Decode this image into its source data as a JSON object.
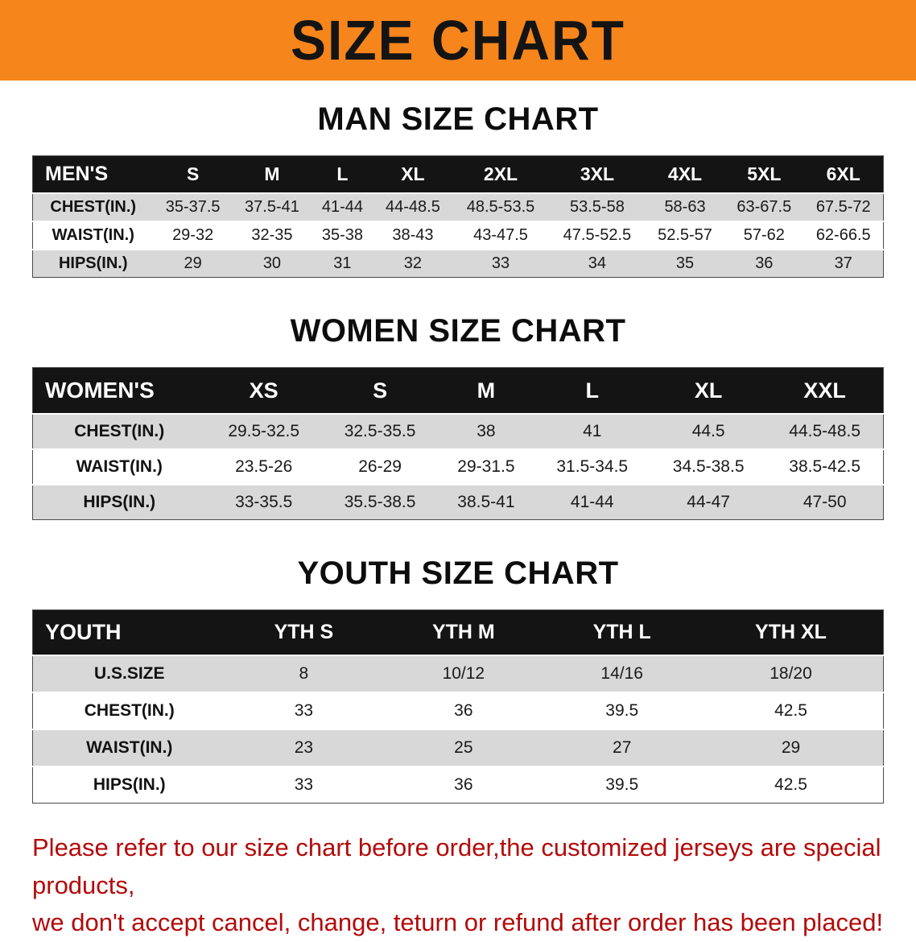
{
  "banner": {
    "title": "SIZE CHART"
  },
  "colors": {
    "accent_orange": "#F6851C",
    "header_black": "#141414",
    "row_gray": "#d8d8d8",
    "warning_red": "#B40A0A"
  },
  "men": {
    "heading": "MAN SIZE CHART",
    "table": {
      "header": [
        "MEN'S",
        "S",
        "M",
        "L",
        "XL",
        "2XL",
        "3XL",
        "4XL",
        "5XL",
        "6XL"
      ],
      "rows": [
        {
          "label": "CHEST(IN.)",
          "values": [
            "35-37.5",
            "37.5-41",
            "41-44",
            "44-48.5",
            "48.5-53.5",
            "53.5-58",
            "58-63",
            "63-67.5",
            "67.5-72"
          ]
        },
        {
          "label": "WAIST(IN.)",
          "values": [
            "29-32",
            "32-35",
            "35-38",
            "38-43",
            "43-47.5",
            "47.5-52.5",
            "52.5-57",
            "57-62",
            "62-66.5"
          ]
        },
        {
          "label": "HIPS(IN.)",
          "values": [
            "29",
            "30",
            "31",
            "32",
            "33",
            "34",
            "35",
            "36",
            "37"
          ]
        }
      ]
    }
  },
  "women": {
    "heading": "WOMEN SIZE CHART",
    "table": {
      "header": [
        "WOMEN'S",
        "XS",
        "S",
        "M",
        "L",
        "XL",
        "XXL"
      ],
      "rows": [
        {
          "label": "CHEST(IN.)",
          "values": [
            "29.5-32.5",
            "32.5-35.5",
            "38",
            "41",
            "44.5",
            "44.5-48.5"
          ]
        },
        {
          "label": "WAIST(IN.)",
          "values": [
            "23.5-26",
            "26-29",
            "29-31.5",
            "31.5-34.5",
            "34.5-38.5",
            "38.5-42.5"
          ]
        },
        {
          "label": "HIPS(IN.)",
          "values": [
            "33-35.5",
            "35.5-38.5",
            "38.5-41",
            "41-44",
            "44-47",
            "47-50"
          ]
        }
      ]
    }
  },
  "youth": {
    "heading": "YOUTH SIZE CHART",
    "table": {
      "header": [
        "YOUTH",
        "YTH S",
        "YTH M",
        "YTH L",
        "YTH XL"
      ],
      "rows": [
        {
          "label": "U.S.SIZE",
          "values": [
            "8",
            "10/12",
            "14/16",
            "18/20"
          ]
        },
        {
          "label": "CHEST(IN.)",
          "values": [
            "33",
            "36",
            "39.5",
            "42.5"
          ]
        },
        {
          "label": "WAIST(IN.)",
          "values": [
            "23",
            "25",
            "27",
            "29"
          ]
        },
        {
          "label": "HIPS(IN.)",
          "values": [
            "33",
            "36",
            "39.5",
            "42.5"
          ]
        }
      ]
    }
  },
  "footer": {
    "line1": "Please refer to our size chart before order,the customized jerseys are special products,",
    "line2": "we don't accept cancel, change, teturn or refund after order has been placed!"
  }
}
